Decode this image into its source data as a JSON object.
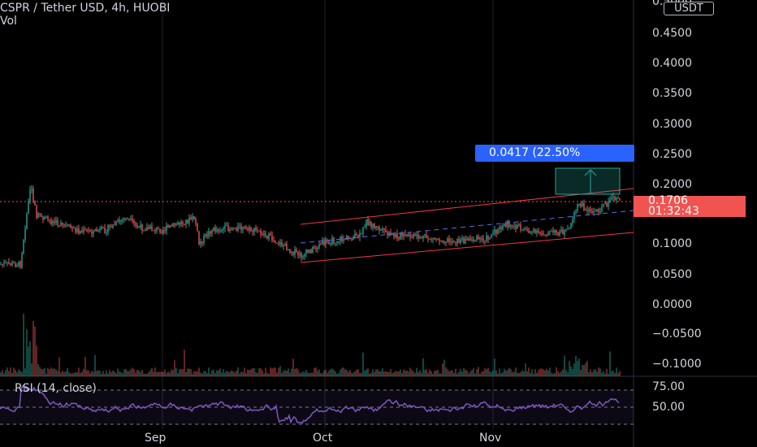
{
  "header": {
    "title": "CSPR / Tether USD, 4h, HUOBI",
    "volume_label": "Vol"
  },
  "currency_chip": "USDT",
  "price_axis": {
    "top_partial_label": "0.5000",
    "ticks": [
      "0.4500",
      "0.4000",
      "0.3500",
      "0.3000",
      "0.2500",
      "0.2000",
      "0.1000",
      "0.0500",
      "0.0000",
      "−0.0500",
      "−0.1000"
    ]
  },
  "rsi_axis": {
    "ticks": [
      "75.00",
      "50.00"
    ]
  },
  "time_axis": {
    "ticks": [
      "Sep",
      "Oct",
      "Nov"
    ]
  },
  "current_price": {
    "value": "0.1706",
    "countdown": "01:32:43"
  },
  "measure_label": "0.0417 (22.50%",
  "rsi": {
    "label": "RSI (14, close)"
  },
  "colors": {
    "up": "#26a69a",
    "down": "#ef5350",
    "channel": "#f23645",
    "rsi_line": "#7e57c2",
    "measure_box": "#2962ff",
    "price_badge": "#f05350"
  }
}
